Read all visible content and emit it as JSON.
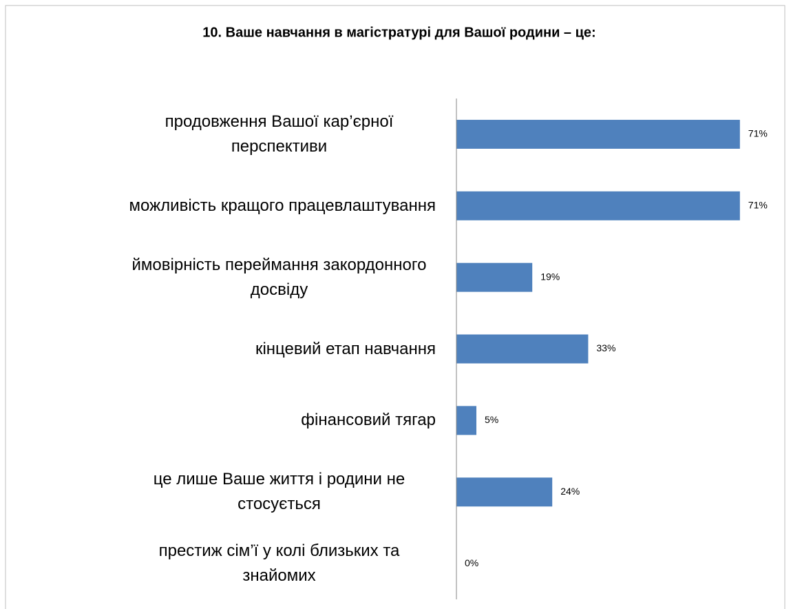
{
  "chart_data": {
    "type": "bar",
    "orientation": "horizontal",
    "title": "10. Ваше навчання в магістратурі для Вашої родини – це:",
    "categories": [
      "продовження Вашої кар’єрної перспективи",
      "можливість кращого працевлаштування",
      "ймовірність переймання закордонного досвіду",
      "кінцевий етап навчання",
      "фінансовий тягар",
      "це лише Ваше життя і родини не стосується",
      "престиж сім’ї у колі близьких та знайомих"
    ],
    "values": [
      71,
      71,
      19,
      33,
      5,
      24,
      0
    ],
    "value_labels": [
      "71%",
      "71%",
      "19%",
      "33%",
      "5%",
      "24%",
      "0%"
    ],
    "color": "#4f81bd",
    "xlim": [
      0,
      80
    ]
  }
}
